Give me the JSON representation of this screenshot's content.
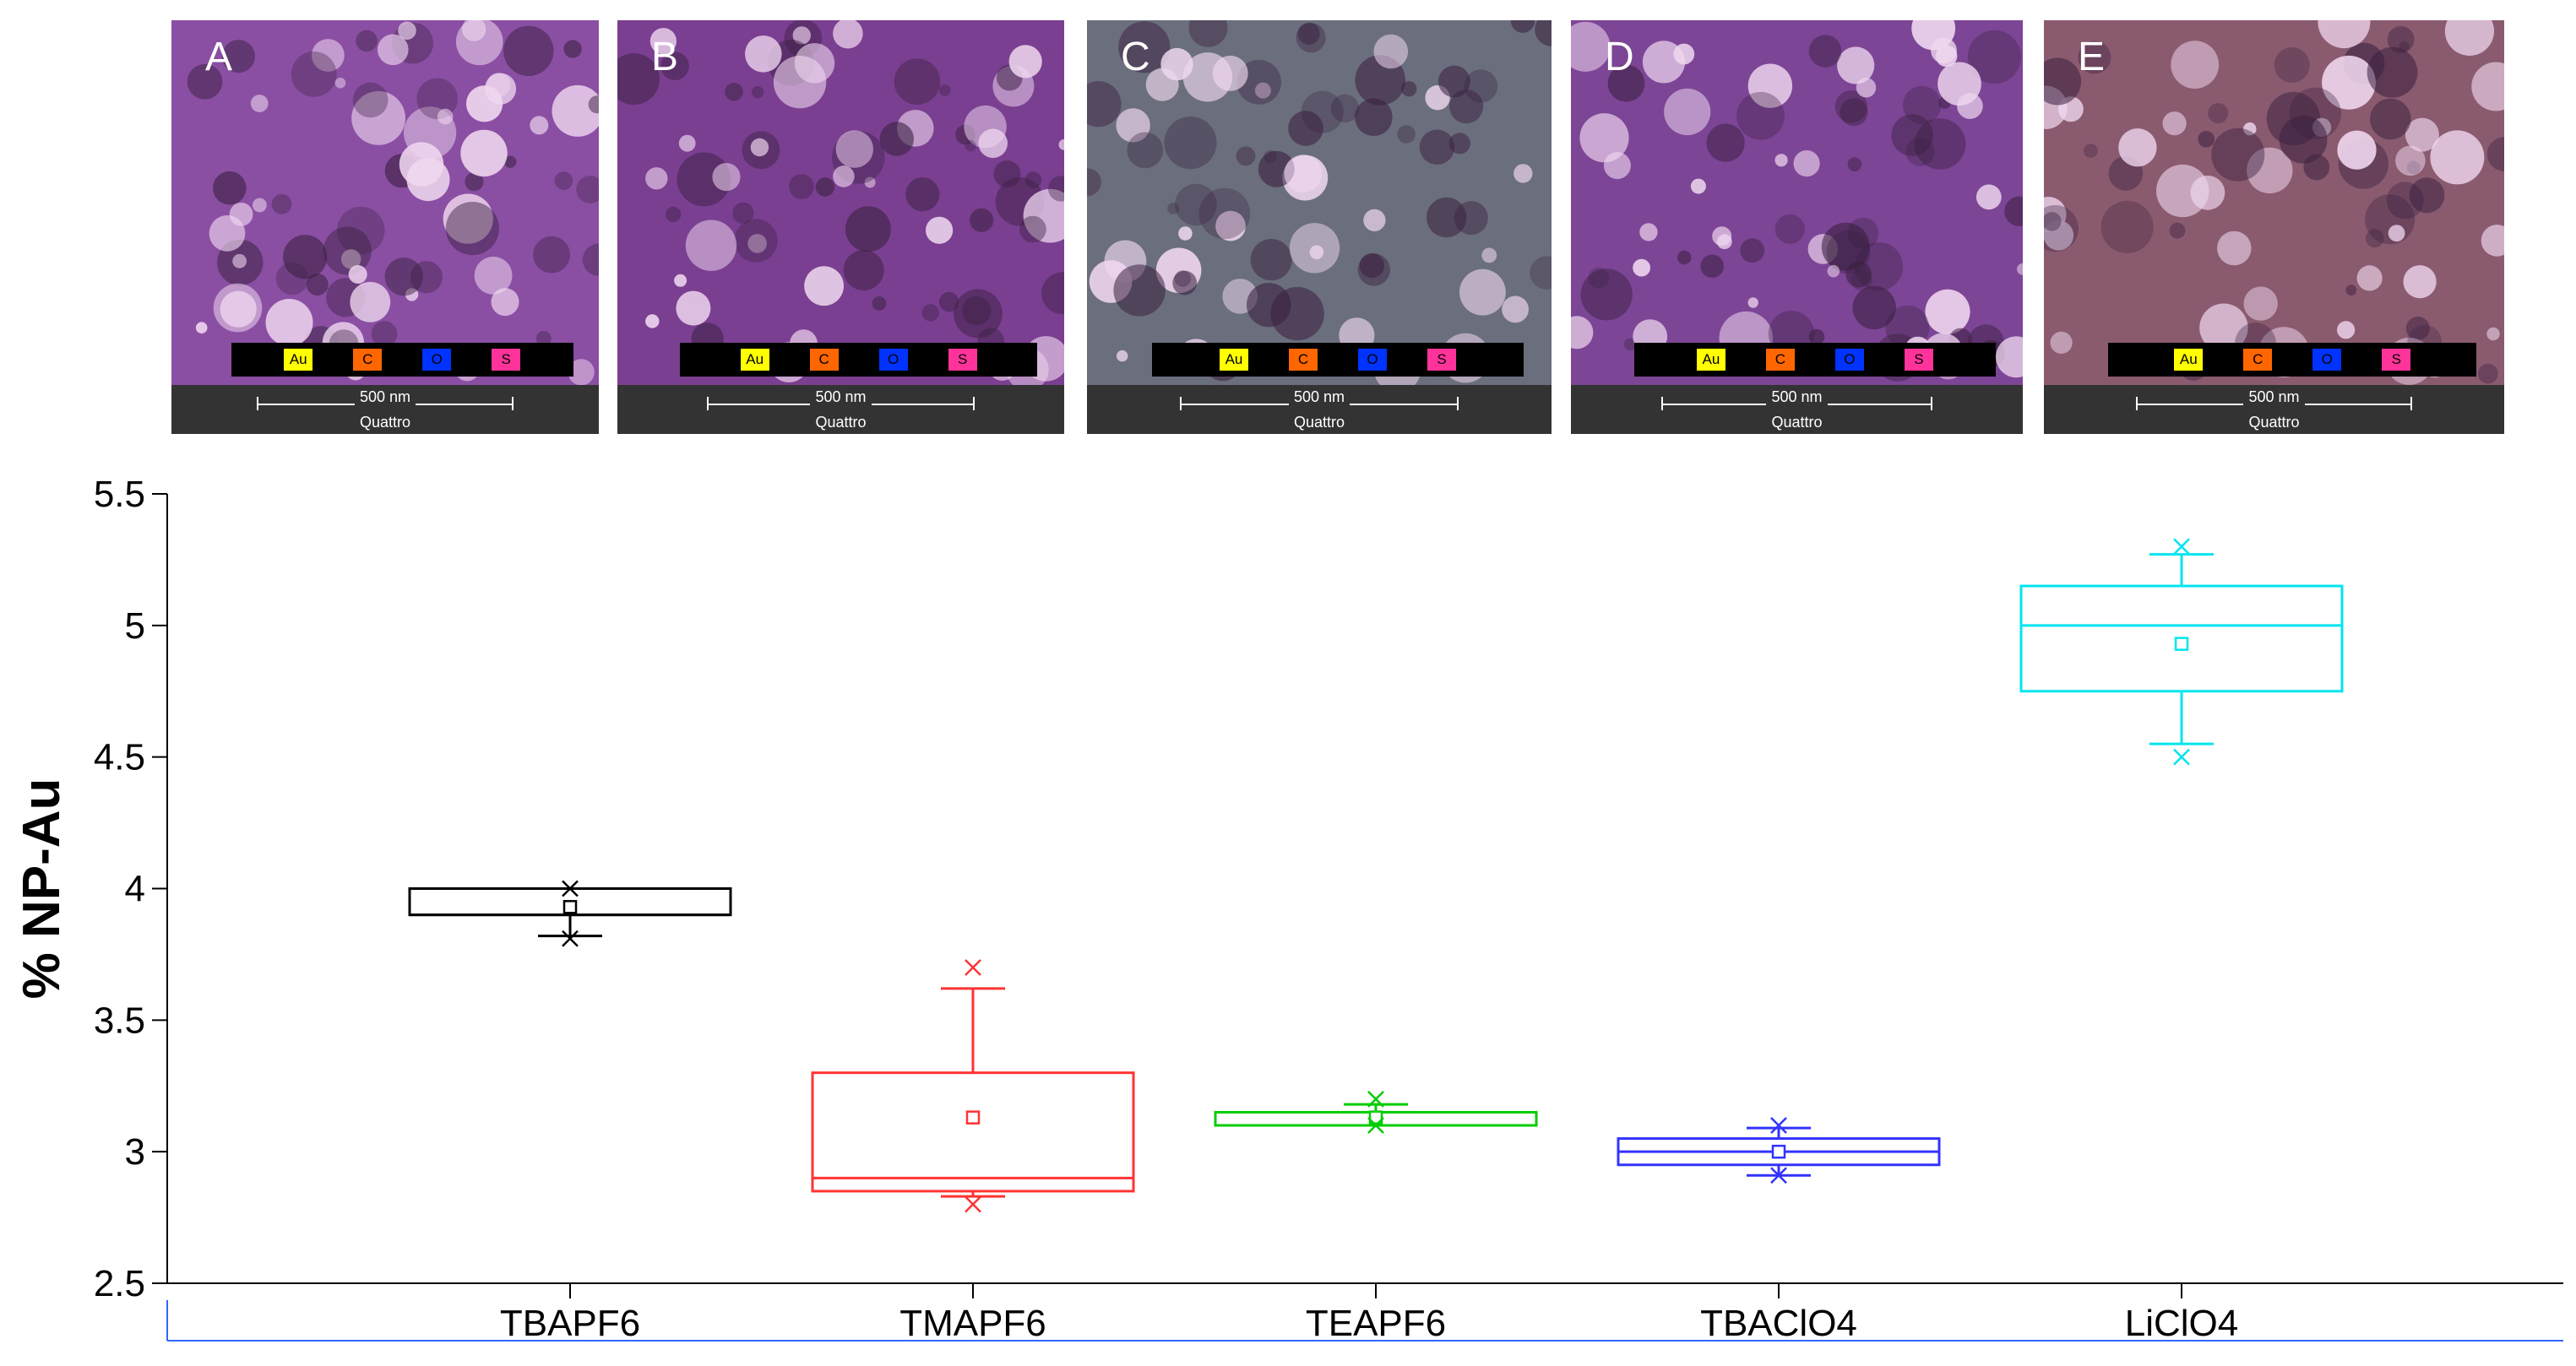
{
  "panels": [
    {
      "letter": "A",
      "tint": "#8a4fa3"
    },
    {
      "letter": "B",
      "tint": "#7a3f90"
    },
    {
      "letter": "C",
      "tint": "#6b6f7d"
    },
    {
      "letter": "D",
      "tint": "#7d4596"
    },
    {
      "letter": "E",
      "tint": "#8a5a6e"
    }
  ],
  "element_legend": [
    {
      "label": "Au",
      "color": "#ffff00",
      "text_color": "#000000"
    },
    {
      "label": "C",
      "color": "#ff6600",
      "text_color": "#000000"
    },
    {
      "label": "O",
      "color": "#0033ff",
      "text_color": "#000000"
    },
    {
      "label": "S",
      "color": "#ff3399",
      "text_color": "#000000"
    }
  ],
  "scale_label": "500 nm",
  "instrument_label": "Quattro",
  "chart_data": {
    "type": "box",
    "ylabel": "% NP-Au",
    "xlabel": "",
    "ylim": [
      2.5,
      5.5
    ],
    "yticks": [
      2.5,
      3,
      3.5,
      4,
      4.5,
      5,
      5.5
    ],
    "ytick_labels": [
      "2.5",
      "3",
      "3.5",
      "4",
      "4.5",
      "5",
      "5.5"
    ],
    "categories": [
      "TBAPF6",
      "TMAPF6",
      "TEAPF6",
      "TBAClO4",
      "LiClO4"
    ],
    "boxes": [
      {
        "name": "TBAPF6",
        "color": "#000000",
        "whisker_low": 3.82,
        "q1": 3.9,
        "median": 3.9,
        "q3": 4.0,
        "whisker_high": 4.0,
        "mean": 3.93,
        "outliers": [
          3.81,
          4.0
        ]
      },
      {
        "name": "TMAPF6",
        "color": "#ff3333",
        "whisker_low": 2.83,
        "q1": 2.85,
        "median": 2.9,
        "q3": 3.3,
        "whisker_high": 3.62,
        "mean": 3.13,
        "outliers": [
          2.8,
          3.7
        ]
      },
      {
        "name": "TEAPF6",
        "color": "#00cc00",
        "whisker_low": 3.1,
        "q1": 3.1,
        "median": 3.1,
        "q3": 3.15,
        "whisker_high": 3.18,
        "mean": 3.13,
        "outliers": [
          3.1,
          3.2
        ]
      },
      {
        "name": "TBAClO4",
        "color": "#3333ff",
        "whisker_low": 2.91,
        "q1": 2.95,
        "median": 3.0,
        "q3": 3.05,
        "whisker_high": 3.09,
        "mean": 3.0,
        "outliers": [
          2.91,
          3.1
        ]
      },
      {
        "name": "LiClO4",
        "color": "#00e5ee",
        "whisker_low": 4.55,
        "q1": 4.75,
        "median": 5.0,
        "q3": 5.15,
        "whisker_high": 5.27,
        "mean": 4.93,
        "outliers": [
          4.5,
          5.3
        ]
      }
    ],
    "grid": false,
    "legend": "none"
  }
}
